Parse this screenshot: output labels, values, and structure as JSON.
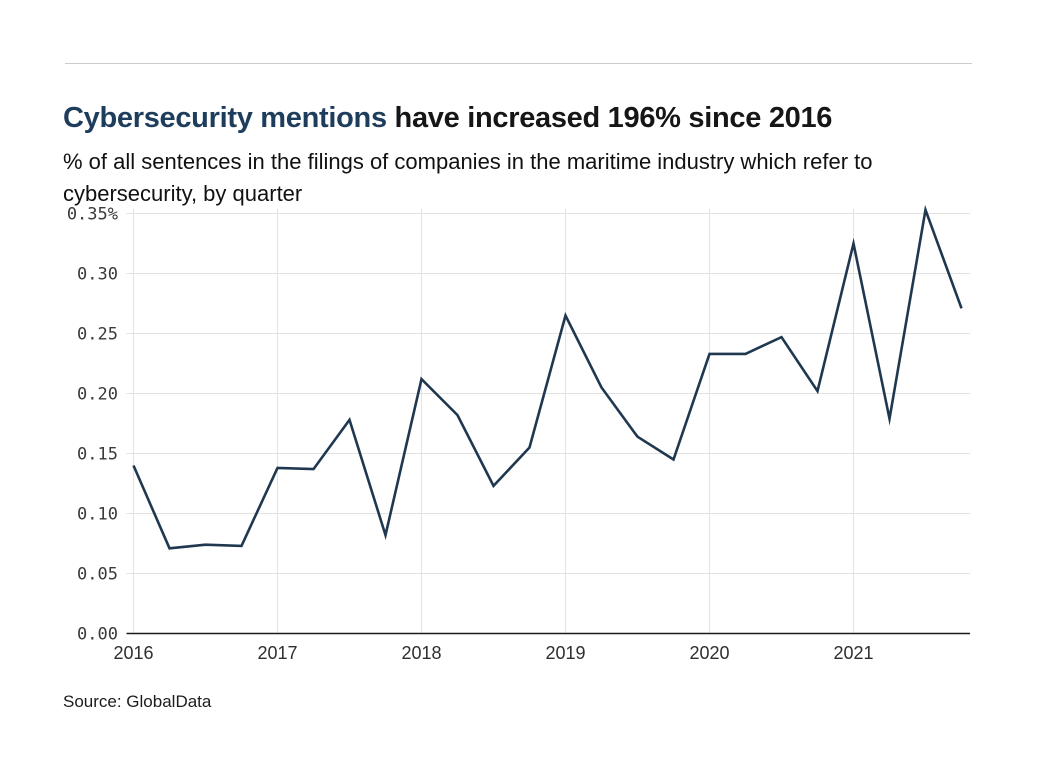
{
  "header": {
    "title_highlight": "Cybersecurity mentions",
    "title_rest": " have increased 196% since 2016",
    "subtitle": "% of all sentences in the filings of companies in the maritime industry which refer to cybersecurity, by quarter"
  },
  "footer": {
    "source": "Source: GlobalData"
  },
  "colors": {
    "title_highlight": "#1e3c5c",
    "title_text": "#161616",
    "line": "#1f3850",
    "grid": "#e2e2e2",
    "axis": "#1a1a1a",
    "tick_text": "#3a3a3a",
    "top_rule": "#cccccc",
    "background": "#ffffff"
  },
  "chart_data": {
    "type": "line",
    "title": "Cybersecurity mentions have increased 196% since 2016",
    "subtitle": "% of all sentences in the filings of companies in the maritime industry which refer to cybersecurity, by quarter",
    "xlabel": "",
    "ylabel": "",
    "legend": false,
    "grid": true,
    "x_unit": "quarter",
    "x": [
      "2016 Q1",
      "2016 Q2",
      "2016 Q3",
      "2016 Q4",
      "2017 Q1",
      "2017 Q2",
      "2017 Q3",
      "2017 Q4",
      "2018 Q1",
      "2018 Q2",
      "2018 Q3",
      "2018 Q4",
      "2019 Q1",
      "2019 Q2",
      "2019 Q3",
      "2019 Q4",
      "2020 Q1",
      "2020 Q2",
      "2020 Q3",
      "2020 Q4",
      "2021 Q1",
      "2021 Q2",
      "2021 Q3",
      "2021 Q4"
    ],
    "values": [
      0.14,
      0.071,
      0.074,
      0.073,
      0.138,
      0.137,
      0.178,
      0.082,
      0.212,
      0.182,
      0.123,
      0.155,
      0.265,
      0.205,
      0.164,
      0.145,
      0.233,
      0.233,
      0.247,
      0.202,
      0.325,
      0.179,
      0.353,
      0.271
    ],
    "x_tick_labels": [
      "2016",
      "2017",
      "2018",
      "2019",
      "2020",
      "2021"
    ],
    "x_tick_indices": [
      0,
      4,
      8,
      12,
      16,
      20
    ],
    "y_tick_values": [
      0.0,
      0.05,
      0.1,
      0.15,
      0.2,
      0.25,
      0.3,
      0.35
    ],
    "y_tick_labels": [
      "0.00",
      "0.05",
      "0.10",
      "0.15",
      "0.20",
      "0.25",
      "0.30",
      "0.35%"
    ],
    "ylim": [
      0,
      0.357
    ]
  }
}
